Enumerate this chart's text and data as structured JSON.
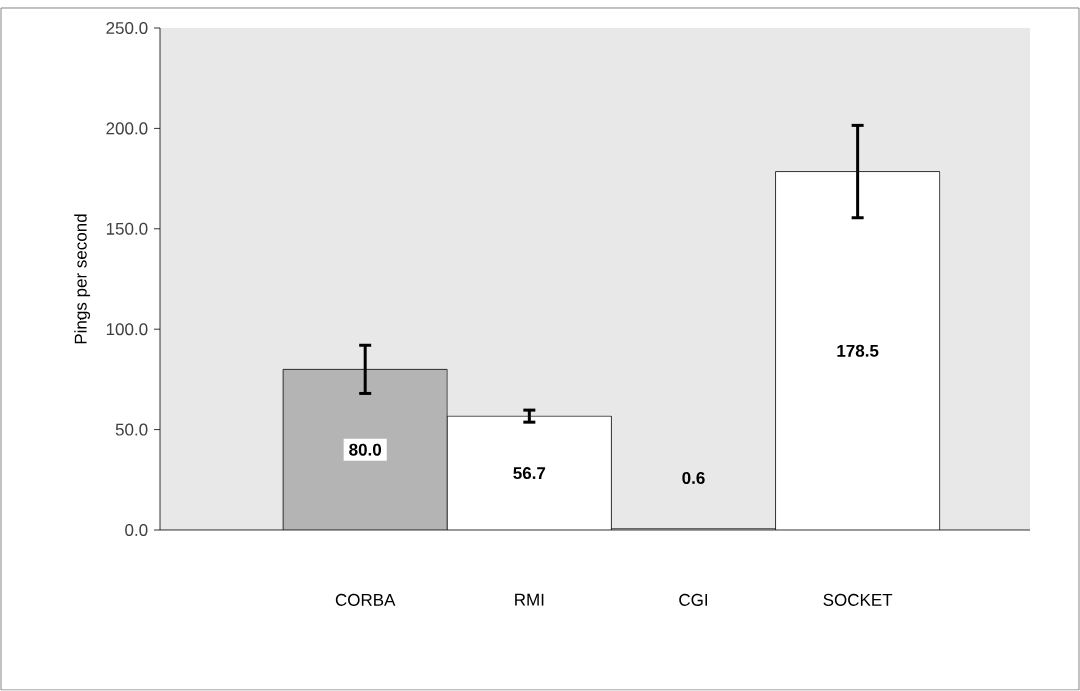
{
  "chart_data": {
    "type": "bar",
    "ylabel": "Pings per second",
    "categories": [
      "CORBA",
      "RMI",
      "CGI",
      "SOCKET"
    ],
    "values": [
      80.0,
      56.7,
      0.6,
      178.5
    ],
    "colors": [
      "#b4b4b4",
      "#ffffff",
      "#ffffff",
      "#ffffff"
    ],
    "errors": [
      12,
      3,
      null,
      23
    ],
    "value_labels": [
      "80.0",
      "56.7",
      "0.6",
      "178.5"
    ],
    "ylim": [
      0,
      250
    ],
    "yticks": [
      {
        "value": 0,
        "label": "0.0"
      },
      {
        "value": 50,
        "label": "50.0"
      },
      {
        "value": 100,
        "label": "100.0"
      },
      {
        "value": 150,
        "label": "150.0"
      },
      {
        "value": 200,
        "label": "200.0"
      },
      {
        "value": 250,
        "label": "250.0"
      }
    ],
    "grid": false
  }
}
